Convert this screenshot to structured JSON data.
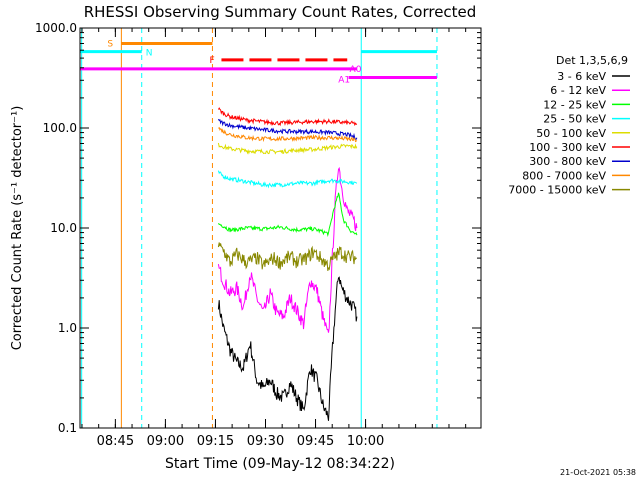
{
  "chart_data": {
    "type": "line",
    "title": "RHESSI Observing Summary Count Rates, Corrected",
    "xlabel": "Start Time (09-May-12 08:34:22)",
    "ylabel": "Corrected Count Rate (s⁻¹ detector⁻¹)",
    "yscale": "log",
    "ylim": [
      0.1,
      1000
    ],
    "xlim_minutes": [
      0,
      120.2
    ],
    "x_ticks": [
      {
        "label": "08:45",
        "minutes": 10.6
      },
      {
        "label": "09:00",
        "minutes": 25.6
      },
      {
        "label": "09:15",
        "minutes": 40.6
      },
      {
        "label": "09:30",
        "minutes": 55.6
      },
      {
        "label": "09:45",
        "minutes": 70.6
      },
      {
        "label": "10:00",
        "minutes": 85.6
      }
    ],
    "y_ticks": [
      {
        "label": "0.1",
        "value": 0.1
      },
      {
        "label": "1.0",
        "value": 1
      },
      {
        "label": "10.0",
        "value": 10
      },
      {
        "label": "100.0",
        "value": 100
      },
      {
        "label": "1000.0",
        "value": 1000
      }
    ],
    "legend_title": "Det 1,3,5,6,9",
    "legend_placement": "right",
    "series": [
      {
        "name": "3 - 6 keV",
        "color": "#000000",
        "points": [
          [
            41.5,
            1.8
          ],
          [
            43,
            1.0
          ],
          [
            45,
            0.6
          ],
          [
            47,
            0.45
          ],
          [
            49,
            0.4
          ],
          [
            51,
            0.7
          ],
          [
            53,
            0.3
          ],
          [
            55,
            0.25
          ],
          [
            57,
            0.3
          ],
          [
            59,
            0.22
          ],
          [
            61,
            0.2
          ],
          [
            63,
            0.28
          ],
          [
            65,
            0.2
          ],
          [
            67,
            0.15
          ],
          [
            69,
            0.4
          ],
          [
            71,
            0.3
          ],
          [
            73,
            0.16
          ],
          [
            74.5,
            0.13
          ],
          [
            75.5,
            0.5
          ],
          [
            76.5,
            1.5
          ],
          [
            77.5,
            3.5
          ],
          [
            78.5,
            2.5
          ],
          [
            80,
            2.0
          ],
          [
            82,
            1.6
          ],
          [
            83,
            1.3
          ]
        ]
      },
      {
        "name": "6 - 12 keV",
        "color": "#ff00ff",
        "points": [
          [
            41.5,
            4.0
          ],
          [
            43,
            3.0
          ],
          [
            45,
            2.2
          ],
          [
            47,
            2.5
          ],
          [
            49,
            1.6
          ],
          [
            51,
            3.5
          ],
          [
            53,
            2.0
          ],
          [
            55,
            1.4
          ],
          [
            57,
            2.2
          ],
          [
            59,
            1.4
          ],
          [
            61,
            1.3
          ],
          [
            63,
            2.0
          ],
          [
            65,
            1.5
          ],
          [
            67,
            1.1
          ],
          [
            69,
            3.0
          ],
          [
            71,
            2.4
          ],
          [
            73,
            1.2
          ],
          [
            74.5,
            0.8
          ],
          [
            75.5,
            4.0
          ],
          [
            76.5,
            18
          ],
          [
            77.5,
            45
          ],
          [
            78.5,
            25
          ],
          [
            80,
            15
          ],
          [
            82,
            12
          ],
          [
            83,
            10
          ]
        ]
      },
      {
        "name": "12 - 25 keV",
        "color": "#00ff00",
        "points": [
          [
            41.5,
            11
          ],
          [
            43,
            10.5
          ],
          [
            45,
            9.5
          ],
          [
            50,
            10
          ],
          [
            55,
            9.8
          ],
          [
            60,
            10.2
          ],
          [
            65,
            9.6
          ],
          [
            70,
            9.8
          ],
          [
            74.5,
            8.8
          ],
          [
            76,
            15
          ],
          [
            77.5,
            22
          ],
          [
            79,
            12
          ],
          [
            81,
            9.5
          ],
          [
            83,
            8.5
          ]
        ]
      },
      {
        "name": "25 - 50 keV",
        "color": "#00ffff",
        "points": [
          [
            41.5,
            36
          ],
          [
            43,
            33
          ],
          [
            45,
            31
          ],
          [
            50,
            29
          ],
          [
            55,
            27
          ],
          [
            60,
            27
          ],
          [
            65,
            28
          ],
          [
            70,
            28
          ],
          [
            75,
            30
          ],
          [
            80,
            29
          ],
          [
            83,
            28
          ]
        ]
      },
      {
        "name": "50 - 100 keV",
        "color": "#dddd00",
        "points": [
          [
            41.5,
            68
          ],
          [
            43,
            65
          ],
          [
            45,
            62
          ],
          [
            50,
            59
          ],
          [
            55,
            58
          ],
          [
            60,
            58
          ],
          [
            65,
            60
          ],
          [
            70,
            61
          ],
          [
            75,
            64
          ],
          [
            80,
            66
          ],
          [
            83,
            65
          ]
        ]
      },
      {
        "name": "100 - 300 keV",
        "color": "#ff0000",
        "points": [
          [
            41.5,
            155
          ],
          [
            43,
            140
          ],
          [
            45,
            130
          ],
          [
            50,
            120
          ],
          [
            55,
            115
          ],
          [
            60,
            112
          ],
          [
            65,
            114
          ],
          [
            70,
            116
          ],
          [
            75,
            116
          ],
          [
            80,
            113
          ],
          [
            83,
            110
          ]
        ]
      },
      {
        "name": "300 - 800 keV",
        "color": "#0000cc",
        "points": [
          [
            41.5,
            118
          ],
          [
            43,
            112
          ],
          [
            45,
            106
          ],
          [
            50,
            100
          ],
          [
            55,
            96
          ],
          [
            60,
            93
          ],
          [
            65,
            92
          ],
          [
            70,
            92
          ],
          [
            75,
            90
          ],
          [
            80,
            86
          ],
          [
            83,
            80
          ]
        ]
      },
      {
        "name": "800 - 7000 keV",
        "color": "#ff8800",
        "points": [
          [
            41.5,
            100
          ],
          [
            43,
            92
          ],
          [
            45,
            86
          ],
          [
            50,
            80
          ],
          [
            55,
            78
          ],
          [
            60,
            78
          ],
          [
            65,
            79
          ],
          [
            70,
            80
          ],
          [
            75,
            80
          ],
          [
            80,
            78
          ],
          [
            83,
            75
          ]
        ]
      },
      {
        "name": "7000 - 15000 keV",
        "color": "#888800",
        "points": [
          [
            41.5,
            6.5
          ],
          [
            43,
            6.0
          ],
          [
            45,
            4.5
          ],
          [
            47,
            5.5
          ],
          [
            50,
            4.5
          ],
          [
            53,
            5.0
          ],
          [
            55,
            4.2
          ],
          [
            58,
            5.0
          ],
          [
            60,
            4.5
          ],
          [
            63,
            5.2
          ],
          [
            65,
            4.6
          ],
          [
            68,
            5.0
          ],
          [
            70,
            5.8
          ],
          [
            74.5,
            4.2
          ],
          [
            76,
            5.0
          ],
          [
            78,
            5.8
          ],
          [
            80,
            5.2
          ],
          [
            83,
            5.0
          ]
        ]
      }
    ],
    "flag_bars": [
      {
        "label": "S",
        "color": "#ff8800",
        "y": 700,
        "x_start": 12.4,
        "x_end": 39.7,
        "dashed": false
      },
      {
        "label": "N",
        "color": "#00ffff",
        "y": 580,
        "x_start": 0,
        "x_end": 18.5,
        "dashed": false
      },
      {
        "label": "N",
        "color": "#00ffff",
        "y": 580,
        "x_start": 84.3,
        "x_end": 107,
        "dashed": false
      },
      {
        "label": "F",
        "color": "#ff0000",
        "y": 480,
        "x_start": 42.4,
        "x_end": 80.1,
        "dashed": true
      },
      {
        "label": "A0",
        "color": "#ff00ff",
        "y": 390,
        "x_start": 0,
        "x_end": 83,
        "dashed": false
      },
      {
        "label": "A1",
        "color": "#ff00ff",
        "y": 320,
        "x_start": 80.5,
        "x_end": 107,
        "dashed": false
      }
    ],
    "vertical_markers": [
      {
        "minutes": 0.5,
        "color": "#00ffff",
        "dashed": false
      },
      {
        "minutes": 12.4,
        "color": "#ff8800",
        "dashed": false
      },
      {
        "minutes": 18.5,
        "color": "#00ffff",
        "dashed": true
      },
      {
        "minutes": 39.7,
        "color": "#ff8800",
        "dashed": true
      },
      {
        "minutes": 84.3,
        "color": "#00ffff",
        "dashed": false
      },
      {
        "minutes": 107,
        "color": "#00ffff",
        "dashed": true
      }
    ],
    "footer_date": "21-Oct-2021 05:38"
  }
}
